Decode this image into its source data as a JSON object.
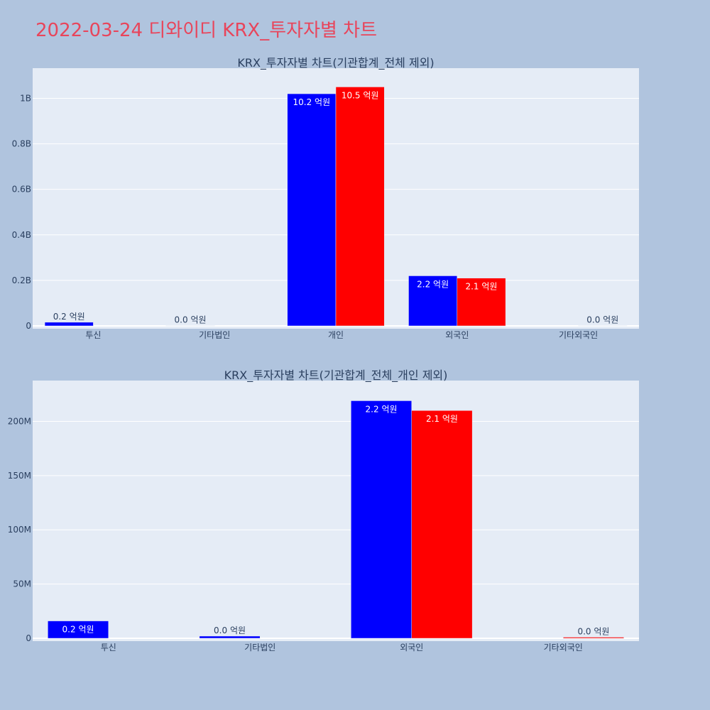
{
  "page": {
    "title": "2022-03-24 디와이디 KRX_투자자별 차트"
  },
  "colors": {
    "background": "#b0c4de",
    "plot_bg": "#e5ecf6",
    "series_a": "#0000ff",
    "series_b": "#ff0000",
    "title": "#e8455b",
    "text": "#2a3f5f"
  },
  "chart_data": [
    {
      "type": "bar",
      "title": "KRX_투자자별 차트(기관합계_전체 제외)",
      "categories": [
        "투신",
        "기타법인",
        "개인",
        "외국인",
        "기타외국인"
      ],
      "series": [
        {
          "color": "#0000ff",
          "values": [
            16000000,
            1000000,
            1020000000,
            220000000,
            0
          ],
          "labels": [
            "0.2 억원",
            "0.0 억원",
            "10.2 억원",
            "2.2 억원",
            ""
          ]
        },
        {
          "color": "#ff0000",
          "values": [
            0,
            0,
            1050000000,
            210000000,
            1000000
          ],
          "labels": [
            "",
            "",
            "10.5 억원",
            "2.1 억원",
            "0.0 억원"
          ]
        }
      ],
      "ylim": [
        0,
        1120000000
      ],
      "yticks": [
        0,
        200000000,
        400000000,
        600000000,
        800000000,
        1000000000
      ],
      "ytick_labels": [
        "0",
        "0.2B",
        "0.4B",
        "0.6B",
        "0.8B",
        "1B"
      ],
      "grid": true
    },
    {
      "type": "bar",
      "title": "KRX_투자자별 차트(기관합계_전체_개인 제외)",
      "categories": [
        "투신",
        "기타법인",
        "외국인",
        "기타외국인"
      ],
      "series": [
        {
          "color": "#0000ff",
          "values": [
            16000000,
            2000000,
            219000000,
            0
          ],
          "labels": [
            "0.2 억원",
            "0.0 억원",
            "2.2 억원",
            ""
          ]
        },
        {
          "color": "#ff0000",
          "values": [
            0,
            0,
            210000000,
            1000000
          ],
          "labels": [
            "",
            "",
            "2.1 억원",
            "0.0 억원"
          ]
        }
      ],
      "ylim": [
        0,
        235000000
      ],
      "yticks": [
        0,
        50000000,
        100000000,
        150000000,
        200000000
      ],
      "ytick_labels": [
        "0",
        "50M",
        "100M",
        "150M",
        "200M"
      ],
      "grid": true
    }
  ]
}
